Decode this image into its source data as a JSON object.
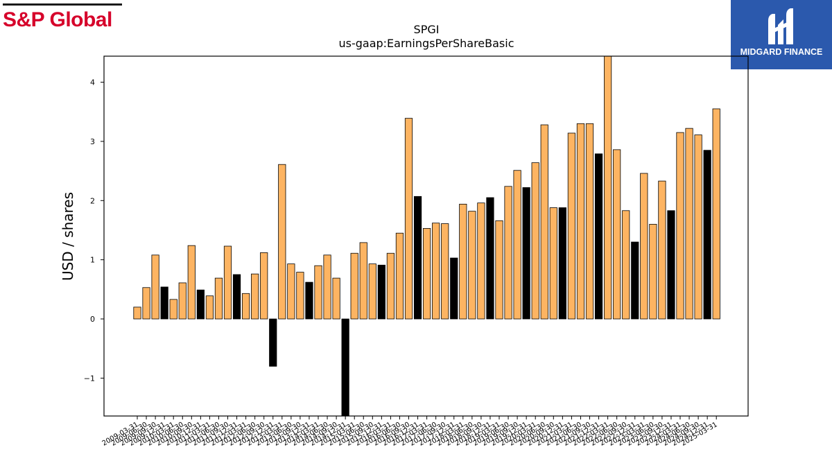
{
  "brand_left": {
    "name": "S&P Global"
  },
  "brand_right": {
    "name": "MIDGARD FINANCE"
  },
  "chart_data": {
    "type": "bar",
    "title": "SPGI",
    "subtitle": "us-gaap:EarningsPerShareBasic",
    "xlabel": "",
    "ylabel": "USD / shares",
    "ylim": [
      -1.64,
      4.44
    ],
    "yticks": [
      -1,
      0,
      1,
      2,
      3,
      4
    ],
    "grid": false,
    "colors": {
      "quarterly": "#fdb462",
      "annual": "#000000",
      "edge": "#000000"
    },
    "categories": [
      "2009-03-31",
      "2009-06-30",
      "2009-09-30",
      "2009-12-31",
      "2010-03-31",
      "2010-06-30",
      "2010-09-30",
      "2010-12-31",
      "2011-03-31",
      "2011-06-30",
      "2011-09-30",
      "2011-12-31",
      "2012-03-31",
      "2012-06-30",
      "2012-09-30",
      "2012-12-31",
      "2013-03-31",
      "2013-06-30",
      "2013-09-30",
      "2013-12-31",
      "2014-03-31",
      "2014-06-30",
      "2014-09-30",
      "2014-12-31",
      "2015-03-31",
      "2015-06-30",
      "2015-09-30",
      "2015-12-31",
      "2016-03-31",
      "2016-06-30",
      "2016-09-30",
      "2016-12-31",
      "2017-03-31",
      "2017-06-30",
      "2017-09-30",
      "2017-12-31",
      "2018-03-31",
      "2018-06-30",
      "2018-09-30",
      "2018-12-31",
      "2019-03-31",
      "2019-06-30",
      "2019-09-30",
      "2019-12-31",
      "2020-03-31",
      "2020-06-30",
      "2020-09-30",
      "2020-12-31",
      "2021-03-31",
      "2021-06-30",
      "2021-09-30",
      "2021-12-31",
      "2022-03-31",
      "2022-06-30",
      "2022-09-30",
      "2022-12-31",
      "2023-03-31",
      "2023-06-30",
      "2023-09-30",
      "2023-12-31",
      "2024-03-31",
      "2024-06-30",
      "2024-09-30",
      "2024-12-31",
      "2025-03-31"
    ],
    "series": [
      {
        "values": [
          0.2,
          0.53,
          1.08,
          0.54,
          0.33,
          0.61,
          1.24,
          0.49,
          0.39,
          0.69,
          1.23,
          0.75,
          0.43,
          0.76,
          1.12,
          -0.8,
          2.61,
          0.93,
          0.79,
          0.62,
          0.9,
          1.08,
          0.69,
          -1.64,
          1.11,
          1.29,
          0.93,
          0.91,
          1.11,
          1.45,
          3.39,
          2.07,
          1.53,
          1.62,
          1.61,
          1.03,
          1.94,
          1.82,
          1.96,
          2.05,
          1.66,
          2.24,
          2.51,
          2.22,
          2.64,
          3.28,
          1.88,
          1.88,
          3.14,
          3.3,
          3.3,
          2.79,
          4.44,
          2.86,
          1.83,
          1.3,
          2.46,
          1.6,
          2.33,
          1.83,
          3.15,
          3.22,
          3.11,
          2.85,
          3.55
        ],
        "period": [
          "Q",
          "Q",
          "Q",
          "FY",
          "Q",
          "Q",
          "Q",
          "FY",
          "Q",
          "Q",
          "Q",
          "FY",
          "Q",
          "Q",
          "Q",
          "FY",
          "Q",
          "Q",
          "Q",
          "FY",
          "Q",
          "Q",
          "Q",
          "FY",
          "Q",
          "Q",
          "Q",
          "FY",
          "Q",
          "Q",
          "Q",
          "FY",
          "Q",
          "Q",
          "Q",
          "FY",
          "Q",
          "Q",
          "Q",
          "FY",
          "Q",
          "Q",
          "Q",
          "FY",
          "Q",
          "Q",
          "Q",
          "FY",
          "Q",
          "Q",
          "Q",
          "FY",
          "Q",
          "Q",
          "Q",
          "FY",
          "Q",
          "Q",
          "Q",
          "FY",
          "Q",
          "Q",
          "Q",
          "FY",
          "Q"
        ]
      }
    ]
  }
}
